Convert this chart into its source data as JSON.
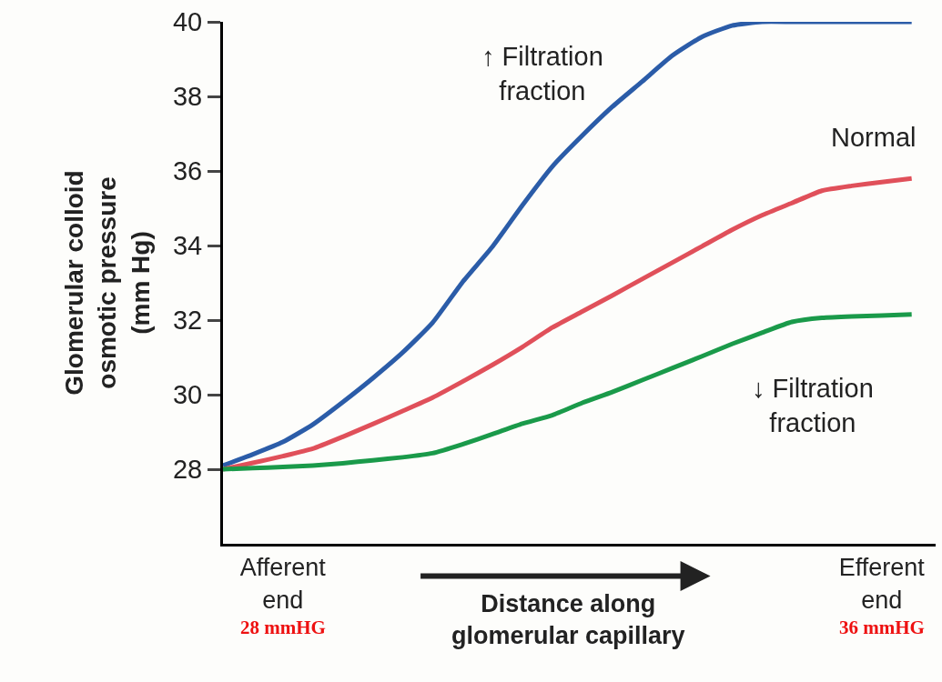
{
  "chart_data": {
    "type": "line",
    "ylabel": "Glomerular colloid\nosmotic pressure\n(mm Hg)",
    "xlabel": "Distance along\nglomerular capillary",
    "categories": [
      null,
      null,
      "Afferent\nend",
      null,
      null,
      null,
      null,
      null,
      null,
      null,
      null,
      null,
      null,
      null,
      null,
      null,
      null,
      null,
      null,
      null,
      null,
      null,
      "Efferent\nend",
      null
    ],
    "ylim": [
      26,
      40
    ],
    "yticks": [
      28,
      30,
      32,
      34,
      36,
      38,
      40
    ],
    "series": [
      {
        "name": "↑ Filtration\nfraction",
        "color": "#2b5ca8",
        "values": [
          28.1,
          28.4,
          28.73,
          29.2,
          29.8,
          30.44,
          31.13,
          31.93,
          33.02,
          33.97,
          35.08,
          36.12,
          36.95,
          37.72,
          38.4,
          39.09,
          39.6,
          39.9,
          40.0,
          40.0,
          40.0,
          40.0,
          40.0,
          40.0
        ]
      },
      {
        "name": "Normal",
        "color": "#e0505a",
        "values": [
          28.0,
          28.17,
          28.35,
          28.55,
          28.87,
          29.21,
          29.56,
          29.92,
          30.35,
          30.8,
          31.28,
          31.8,
          32.23,
          32.66,
          33.1,
          33.54,
          33.98,
          34.42,
          34.81,
          35.14,
          35.47,
          35.6,
          35.7,
          35.8
        ]
      },
      {
        "name": "↓ Filtration\nfraction",
        "color": "#1a9a4a",
        "values": [
          28.0,
          28.03,
          28.06,
          28.1,
          28.16,
          28.24,
          28.32,
          28.43,
          28.67,
          28.94,
          29.22,
          29.45,
          29.78,
          30.07,
          30.39,
          30.71,
          31.03,
          31.36,
          31.66,
          31.95,
          32.06,
          32.1,
          32.12,
          32.15
        ]
      }
    ],
    "annotations": [
      "28 mmHG",
      "36 mmHG"
    ],
    "legend": false,
    "marker": "none",
    "line_style": "solid"
  }
}
